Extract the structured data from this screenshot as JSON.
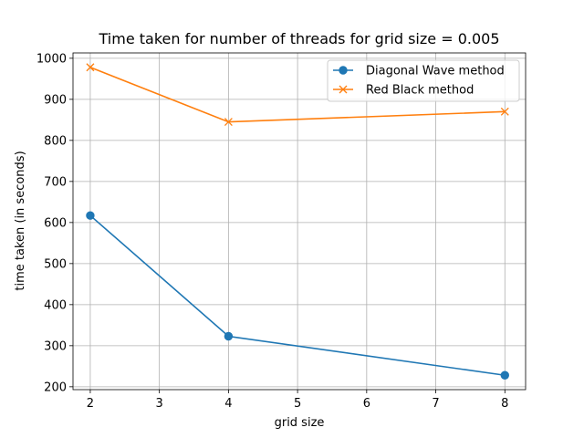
{
  "chart_data": {
    "type": "line",
    "title": "Time taken for number of threads for grid size = 0.005",
    "xlabel": "grid size",
    "ylabel": "time taken (in seconds)",
    "xlim": [
      1.75,
      8.3
    ],
    "ylim": [
      193,
      1013
    ],
    "xticks": [
      2,
      3,
      4,
      5,
      6,
      7,
      8
    ],
    "yticks": [
      200,
      300,
      400,
      500,
      600,
      700,
      800,
      900,
      1000
    ],
    "grid": true,
    "legend_position": "upper-right",
    "x": [
      2,
      4,
      8
    ],
    "series": [
      {
        "name": "Diagonal Wave method",
        "values": [
          617,
          323,
          228
        ],
        "color": "#1f77b4",
        "marker": "circle"
      },
      {
        "name": "Red Black method",
        "values": [
          978,
          845,
          870
        ],
        "color": "#ff7f0e",
        "marker": "x"
      }
    ]
  }
}
